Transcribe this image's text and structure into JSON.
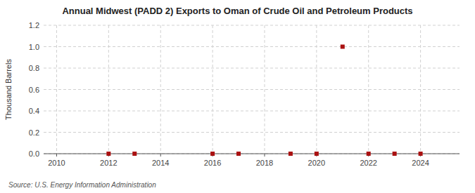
{
  "chart_data": {
    "type": "scatter",
    "title": "Annual Midwest (PADD 2) Exports to Oman of Crude Oil and Petroleum Products",
    "ylabel": "Thousand Barrels",
    "source": "Source: U.S. Energy Information Administration",
    "x": [
      2012,
      2013,
      2016,
      2017,
      2019,
      2020,
      2021,
      2022,
      2023,
      2024
    ],
    "values": [
      0.0,
      0.0,
      0.0,
      0.0,
      0.0,
      0.0,
      1.0,
      0.0,
      0.0,
      0.0
    ],
    "color": "#AA1111",
    "marker": "square",
    "xlim": [
      2009.5,
      2025.5
    ],
    "ylim": [
      0.0,
      1.2
    ],
    "xticks": [
      2010,
      2012,
      2014,
      2016,
      2018,
      2020,
      2022,
      2024
    ],
    "yticks": [
      {
        "value": 0.0,
        "label": "0.0"
      },
      0.2,
      0.4,
      0.6,
      0.8,
      {
        "value": 1.0,
        "label": "1.0"
      },
      1.2
    ],
    "grid": true
  }
}
